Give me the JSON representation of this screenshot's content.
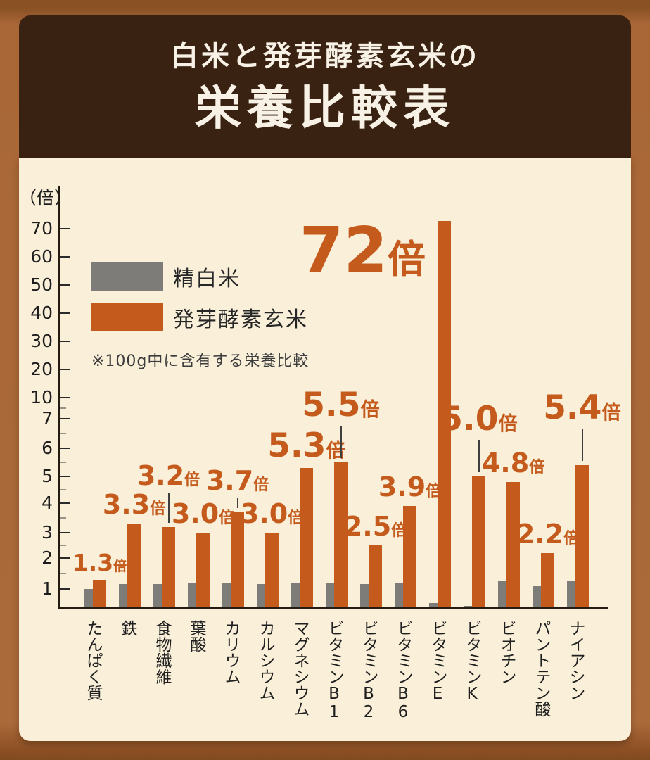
{
  "colors": {
    "frame_brown": "#ab6a3a",
    "header_brown": "#3a2213",
    "panel_cream": "#faf0da",
    "accent_orange": "#c45b1d",
    "neutral_gray": "#7e7c78",
    "text_dark": "#1e1e1e"
  },
  "header": {
    "lead": "白米と発芽酵素玄米の",
    "title": "栄養比較表"
  },
  "legend": {
    "items": [
      {
        "label": "精白米",
        "color": "#7e7c78"
      },
      {
        "label": "発芽酵素玄米",
        "color": "#c45b1d"
      }
    ],
    "note": "※100g中に含有する栄養比較"
  },
  "chart_data": {
    "type": "bar",
    "title": "白米と発芽酵素玄米の栄養比較表",
    "unit_label": "（倍）",
    "value_suffix": "倍",
    "y_axis": {
      "scale": "broken pseudo-log (1-7 linear, then 10-70 by decades)",
      "ticks": [
        1,
        2,
        3,
        4,
        5,
        6,
        7,
        10,
        20,
        30,
        40,
        50,
        60,
        70
      ],
      "ylim": [
        0,
        75
      ],
      "grid": false
    },
    "legend_position": "upper-left inside plot",
    "categories": [
      "たんぱく質",
      "鉄",
      "食物繊維",
      "葉酸",
      "カリウム",
      "カルシウム",
      "マグネシウム",
      "ビタミンB1",
      "ビタミンB2",
      "ビタミンB6",
      "ビタミンE",
      "ビタミンK",
      "ビオチン",
      "パントテン酸",
      "ナイアシン"
    ],
    "series": [
      {
        "name": "精白米",
        "color": "#7e7c78",
        "role": "reference (=1倍)",
        "values": [
          1.0,
          1.15,
          1.15,
          1.2,
          1.2,
          1.15,
          1.2,
          1.2,
          1.15,
          1.2,
          0.22,
          0.04,
          1.25,
          1.1,
          1.25
        ]
      },
      {
        "name": "発芽酵素玄米",
        "color": "#c45b1d",
        "values": [
          1.3,
          3.3,
          3.2,
          3.0,
          3.7,
          3.0,
          5.3,
          5.5,
          2.5,
          3.9,
          72,
          5.0,
          4.8,
          2.2,
          5.4
        ]
      }
    ],
    "annotations": [
      {
        "text": "1.3",
        "size": "sm",
        "leader_line": 0
      },
      {
        "text": "3.3",
        "size": "md",
        "leader_line": 0
      },
      {
        "text": "3.2",
        "size": "md",
        "leader_line": 42
      },
      {
        "text": "3.0",
        "size": "md",
        "leader_line": 0
      },
      {
        "text": "3.7",
        "size": "md",
        "leader_line": 14
      },
      {
        "text": "3.0",
        "size": "md",
        "leader_line": 0
      },
      {
        "text": "5.3",
        "size": "lg",
        "leader_line": 0
      },
      {
        "text": "5.5",
        "size": "lg",
        "leader_line": 46
      },
      {
        "text": "2.5",
        "size": "md",
        "leader_line": 0
      },
      {
        "text": "3.9",
        "size": "md",
        "leader_line": 0
      },
      {
        "text": "72",
        "size": "xl",
        "leader_line": 0
      },
      {
        "text": "5.0",
        "size": "lg",
        "leader_line": 46
      },
      {
        "text": "4.8",
        "size": "md",
        "leader_line": 0
      },
      {
        "text": "2.2",
        "size": "md",
        "leader_line": 0
      },
      {
        "text": "5.4",
        "size": "lg",
        "leader_line": 46
      }
    ]
  }
}
